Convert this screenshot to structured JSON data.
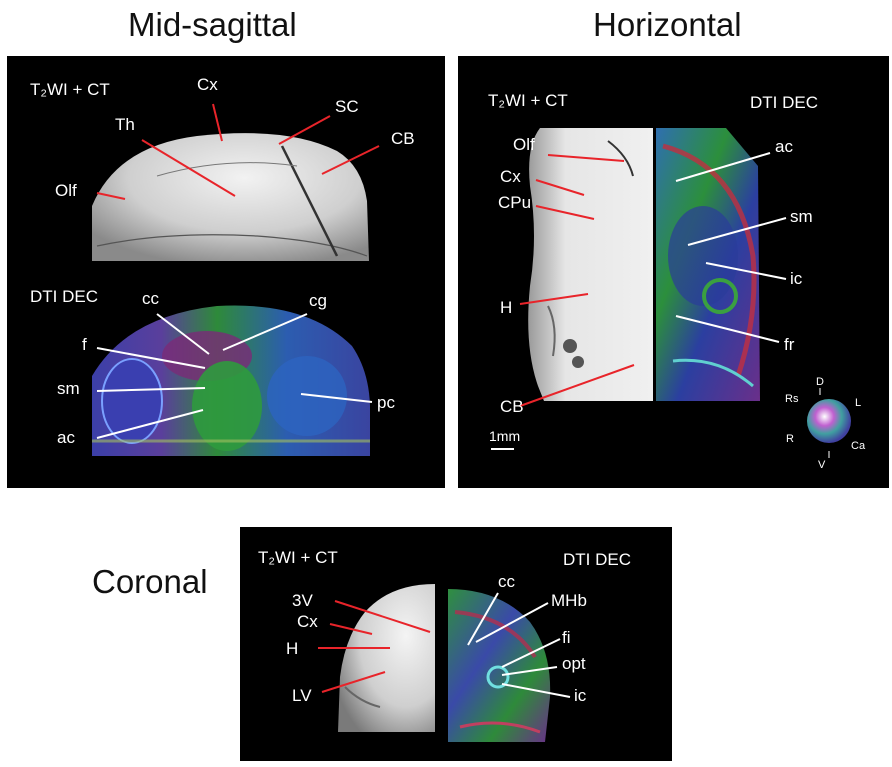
{
  "titles": {
    "sagittal": "Mid-sagittal",
    "horizontal": "Horizontal",
    "coronal": "Coronal"
  },
  "sagittal": {
    "modality_top": "T₂WI + CT",
    "modality_bottom": "DTI DEC",
    "labels": {
      "cx": "Cx",
      "th": "Th",
      "sc": "SC",
      "cb": "CB",
      "olf": "Olf",
      "cc": "cc",
      "cg": "cg",
      "f": "f",
      "sm": "sm",
      "ac": "ac",
      "pc": "pc"
    }
  },
  "horizontal": {
    "modality_left": "T₂WI + CT",
    "modality_right": "DTI DEC",
    "labels": {
      "olf": "Olf",
      "cx": "Cx",
      "cpu": "CPu",
      "h": "H",
      "cb": "CB",
      "ac": "ac",
      "sm": "sm",
      "ic": "ic",
      "fr": "fr"
    },
    "scale_bar": "1mm",
    "orientation": {
      "d": "D",
      "rs": "Rs",
      "l": "L",
      "r": "R",
      "ca": "Ca",
      "v": "V"
    }
  },
  "coronal": {
    "modality_left": "T₂WI + CT",
    "modality_right": "DTI DEC",
    "labels": {
      "v3": "3V",
      "cx": "Cx",
      "h": "H",
      "lv": "LV",
      "cc": "cc",
      "mhb": "MHb",
      "fi": "fi",
      "opt": "opt",
      "ic": "ic"
    }
  },
  "colors": {
    "red_line": "#e8242a",
    "white_line": "#ffffff",
    "panel_bg": "#000000"
  }
}
